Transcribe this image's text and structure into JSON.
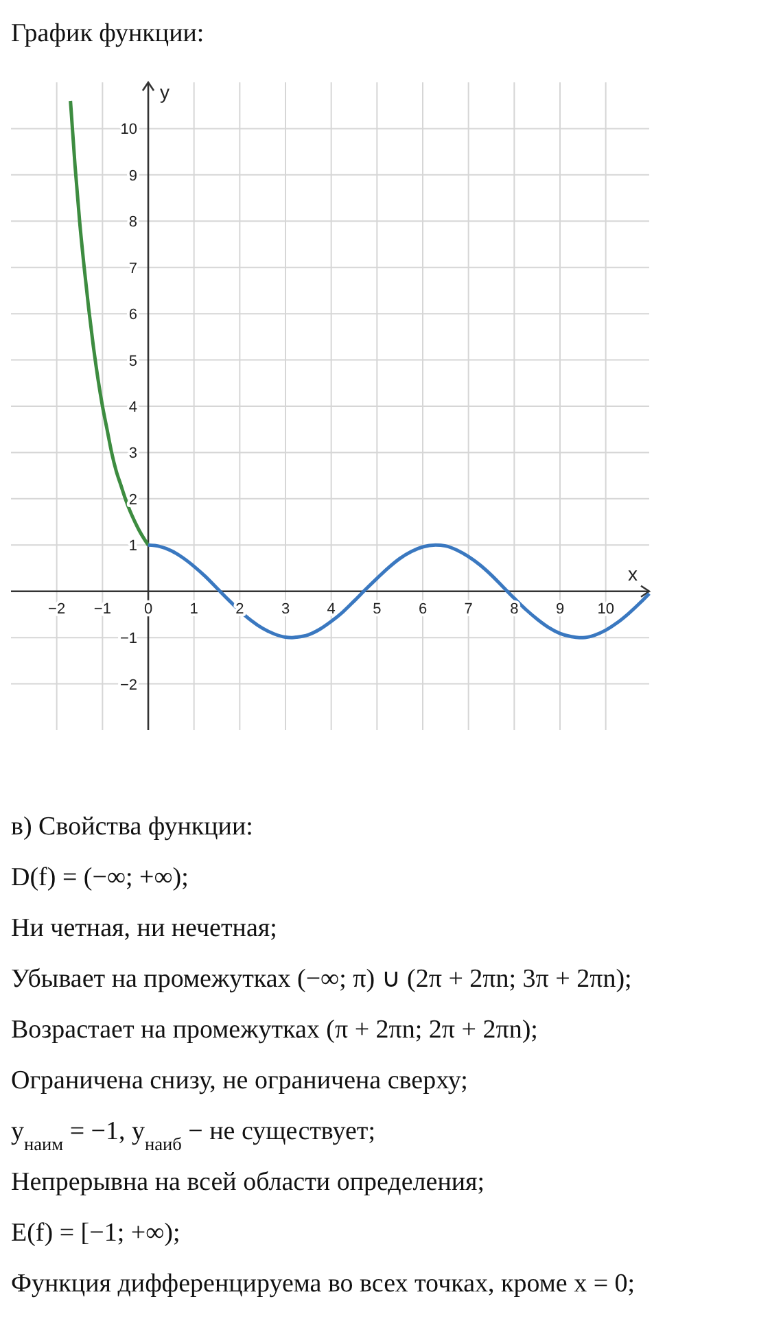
{
  "chart_data": {
    "type": "line",
    "title": "График функции:",
    "xlabel": "x",
    "ylabel": "y",
    "xlim": [
      -3,
      10.95
    ],
    "ylim": [
      -3,
      11
    ],
    "xticks": [
      -2,
      -1,
      0,
      1,
      2,
      3,
      4,
      5,
      6,
      7,
      8,
      9,
      10
    ],
    "yticks": [
      -2,
      -1,
      {
        "value": 0,
        "label": null
      },
      1,
      2,
      3,
      4,
      5,
      6,
      7,
      8,
      9,
      10
    ],
    "grid": true,
    "series": [
      {
        "color": "#3d8c40",
        "x": [
          -1.7,
          -1.6,
          -1.5,
          -1.4,
          -1.3,
          -1.2,
          -1.1,
          -1,
          -0.9,
          -0.8,
          -0.7,
          -0.6,
          -0.5,
          -0.4,
          -0.3,
          -0.2,
          -0.1,
          0
        ],
        "values": [
          10.6,
          9.2,
          8,
          7,
          6.1,
          5.3,
          4.6,
          4,
          3.5,
          3,
          2.6,
          2.3,
          2,
          1.74,
          1.52,
          1.32,
          1.15,
          1
        ]
      },
      {
        "color": "#3a78c0",
        "x": [
          0,
          0.25,
          0.5,
          0.75,
          1,
          1.25,
          1.5,
          1.75,
          2,
          2.25,
          2.5,
          2.75,
          3,
          3.14,
          3.25,
          3.5,
          3.75,
          4,
          4.25,
          4.5,
          4.75,
          5,
          5.25,
          5.5,
          5.75,
          6,
          6.28,
          6.5,
          6.75,
          7,
          7.25,
          7.5,
          7.75,
          8,
          8.25,
          8.5,
          8.75,
          9,
          9.25,
          9.42,
          9.5,
          9.75,
          10,
          10.25,
          10.5,
          10.75,
          10.95
        ],
        "values": [
          1,
          0.97,
          0.88,
          0.73,
          0.54,
          0.32,
          0.07,
          -0.18,
          -0.42,
          -0.63,
          -0.8,
          -0.92,
          -0.99,
          -1,
          -0.99,
          -0.94,
          -0.82,
          -0.65,
          -0.45,
          -0.21,
          0.04,
          0.28,
          0.51,
          0.71,
          0.86,
          0.96,
          1,
          0.98,
          0.89,
          0.75,
          0.57,
          0.35,
          0.1,
          -0.15,
          -0.39,
          -0.6,
          -0.78,
          -0.91,
          -0.98,
          -1,
          -1,
          -0.95,
          -0.84,
          -0.68,
          -0.48,
          -0.25,
          -0.05
        ]
      }
    ],
    "annotations": [
      "в) Свойства функции:",
      "D(f) = (−∞; +∞);",
      "Ни четная, ни нечетная;",
      "Убывает на промежутках (−∞; π) ∪ (2π + 2πn; 3π + 2πn);",
      "Возрастает на промежутках (π + 2πn; 2π + 2πn);",
      "Ограничена снизу, не ограничена сверху;",
      "y$_{наим}$ = −1, y$_{наиб}$ − не существует;",
      "Непрерывна на всей области определения;",
      "E(f) = [−1; +∞);",
      "Функция дифференцируема во всех точках, кроме x = 0;"
    ]
  }
}
